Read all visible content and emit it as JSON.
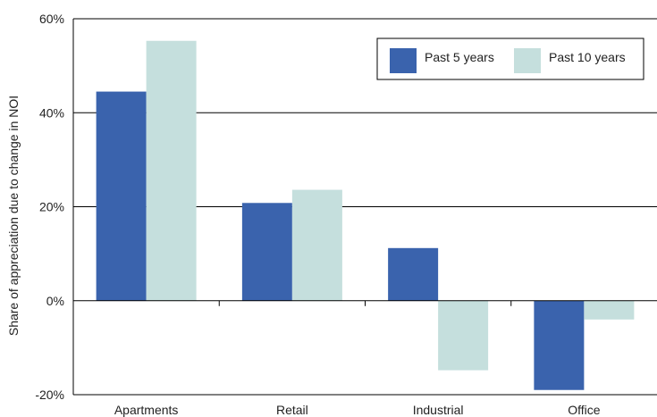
{
  "chart_data": {
    "type": "bar",
    "title": "",
    "xlabel": "",
    "ylabel": "Share of appreciation due to change in NOI",
    "categories": [
      "Apartments",
      "Retail",
      "Industrial",
      "Office"
    ],
    "series": [
      {
        "name": "Past 5 years",
        "values": [
          44.5,
          20.8,
          11.2,
          -19.0
        ],
        "color": "#3a63ad"
      },
      {
        "name": "Past 10 years",
        "values": [
          55.3,
          23.6,
          -14.8,
          -4.0
        ],
        "color": "#c5dfdd"
      }
    ],
    "ylim": [
      -20,
      60
    ],
    "yticks": [
      -20,
      0,
      20,
      40,
      60
    ],
    "ytick_labels": [
      "-20%",
      "0%",
      "20%",
      "40%",
      "60%"
    ],
    "grid": "horizontal",
    "legend_position": "top-right"
  }
}
